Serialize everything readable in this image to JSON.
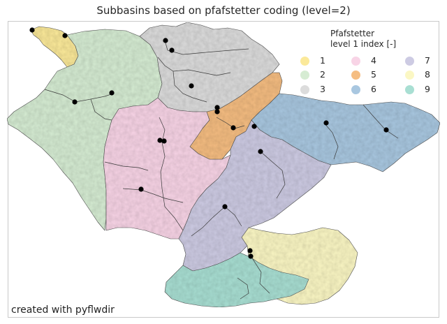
{
  "title": "Subbasins based on pfafstetter coding (level=2)",
  "credit": "created with pyflwdir",
  "legend": {
    "title_line1": "Pfafstetter",
    "title_line2": "level 1 index [-]",
    "entries": [
      {
        "label": "1",
        "color": "#fbe99a"
      },
      {
        "label": "2",
        "color": "#d6ecd3"
      },
      {
        "label": "3",
        "color": "#dcdcdc"
      },
      {
        "label": "4",
        "color": "#f8d4e6"
      },
      {
        "label": "5",
        "color": "#f5bd82"
      },
      {
        "label": "6",
        "color": "#a9c7e0"
      },
      {
        "label": "7",
        "color": "#cdcbe3"
      },
      {
        "label": "8",
        "color": "#fbf7c4"
      },
      {
        "label": "9",
        "color": "#a9dfd3"
      }
    ]
  }
}
